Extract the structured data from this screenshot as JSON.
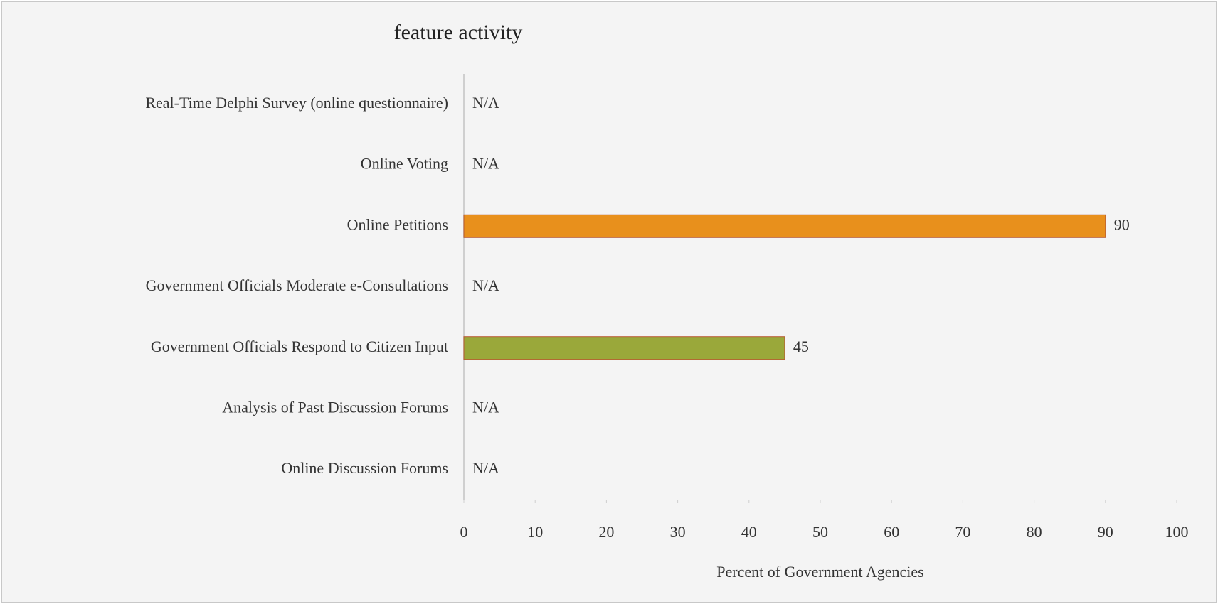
{
  "chart_data": {
    "type": "barh",
    "title": "feature activity",
    "categories": [
      "Real-Time Delphi Survey (online questionnaire)",
      "Online Voting",
      "Online Petitions",
      "Government Officials Moderate e-Consultations",
      "Government Officials Respond to Citizen Input",
      "Analysis of Past Discussion Forums",
      "Online Discussion Forums"
    ],
    "values": [
      null,
      null,
      90,
      null,
      45,
      null,
      null
    ],
    "value_labels": [
      "N/A",
      "N/A",
      "90",
      "N/A",
      "45",
      "N/A",
      "N/A"
    ],
    "colors": [
      null,
      null,
      "#e8901c",
      null,
      "#9aa83a",
      null,
      null
    ],
    "xlabel": "Percent of Government Agencies",
    "xlim": [
      0,
      100
    ],
    "xticks": [
      0,
      10,
      20,
      30,
      40,
      50,
      60,
      70,
      80,
      90,
      100
    ]
  }
}
